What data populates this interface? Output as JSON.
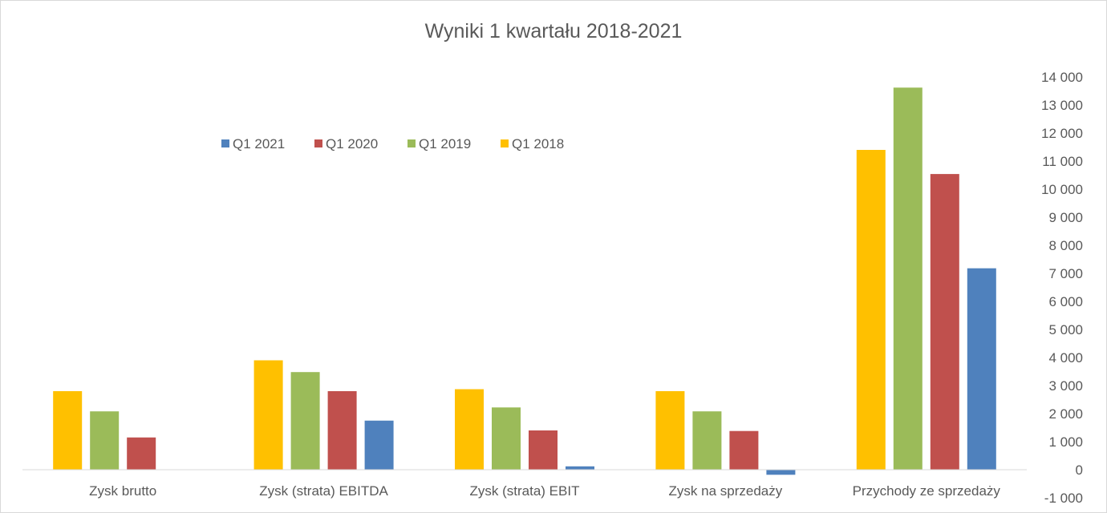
{
  "chart_data": {
    "type": "bar",
    "title": "Wyniki 1 kwartału 2018-2021",
    "categories": [
      "Zysk brutto",
      "Zysk (strata) EBITDA",
      "Zysk (strata) EBIT",
      "Zysk na sprzedaży",
      "Przychody ze sprzedaży"
    ],
    "series": [
      {
        "name": "Q1 2018",
        "color": "#FFC000",
        "values": [
          2800,
          3900,
          2870,
          2800,
          11400
        ]
      },
      {
        "name": "Q1 2019",
        "color": "#9BBB59",
        "values": [
          2080,
          3480,
          2220,
          2080,
          13620
        ]
      },
      {
        "name": "Q1 2020",
        "color": "#C0504D",
        "values": [
          1150,
          2800,
          1400,
          1380,
          10540
        ]
      },
      {
        "name": "Q1 2021",
        "color": "#4F81BD",
        "values": [
          0,
          1750,
          120,
          -180,
          7180
        ]
      }
    ],
    "legend_order": [
      "Q1 2021",
      "Q1 2020",
      "Q1 2019",
      "Q1 2018"
    ],
    "ylim": [
      -1000,
      14000
    ],
    "ytick_labels": [
      "14 000",
      "13 000",
      "12 000",
      "11 000",
      "10 000",
      "9 000",
      "8 000",
      "7 000",
      "6 000",
      "5 000",
      "4 000",
      "3 000",
      "2 000",
      "1 000",
      "0",
      "-1 000"
    ],
    "yaxis_position": "right",
    "legend_position": "top-left",
    "grid": false,
    "xlabel": "",
    "ylabel": ""
  }
}
